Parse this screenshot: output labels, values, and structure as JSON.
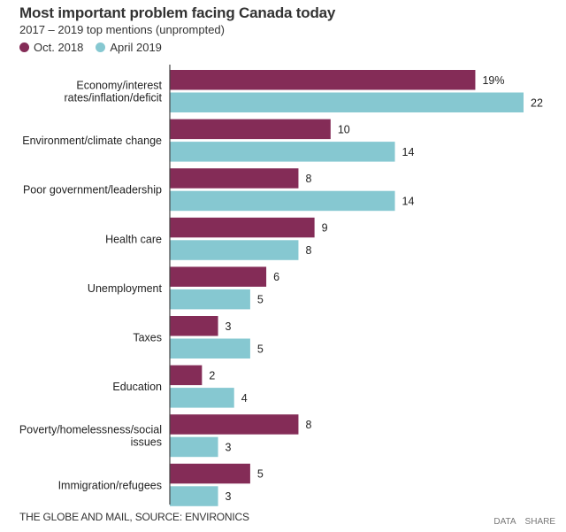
{
  "chart_data": {
    "type": "bar",
    "orientation": "horizontal",
    "title": "Most important problem facing Canada today",
    "subtitle": "2017 – 2019 top mentions (unprompted)",
    "xlabel": "",
    "ylabel": "",
    "xlim": [
      0,
      22
    ],
    "grid": false,
    "legend_position": "top-left",
    "value_suffix_first": "%",
    "categories": [
      [
        "Economy/interest",
        "rates/inflation/deficit"
      ],
      [
        "Environment/climate change"
      ],
      [
        "Poor government/leadership"
      ],
      [
        "Health care"
      ],
      [
        "Unemployment"
      ],
      [
        "Taxes"
      ],
      [
        "Education"
      ],
      [
        "Poverty/homelessness/social",
        "issues"
      ],
      [
        "Immigration/refugees"
      ]
    ],
    "series": [
      {
        "name": "Oct. 2018",
        "color": "#842c57",
        "values": [
          19,
          10,
          8,
          9,
          6,
          3,
          2,
          8,
          5
        ]
      },
      {
        "name": "April 2019",
        "color": "#86c8d1",
        "values": [
          22,
          14,
          14,
          8,
          5,
          5,
          4,
          3,
          3
        ]
      }
    ]
  },
  "footer": {
    "source": "THE GLOBE AND MAIL, SOURCE: ENVIRONICS",
    "data_link": "DATA",
    "share_link": "SHARE"
  }
}
